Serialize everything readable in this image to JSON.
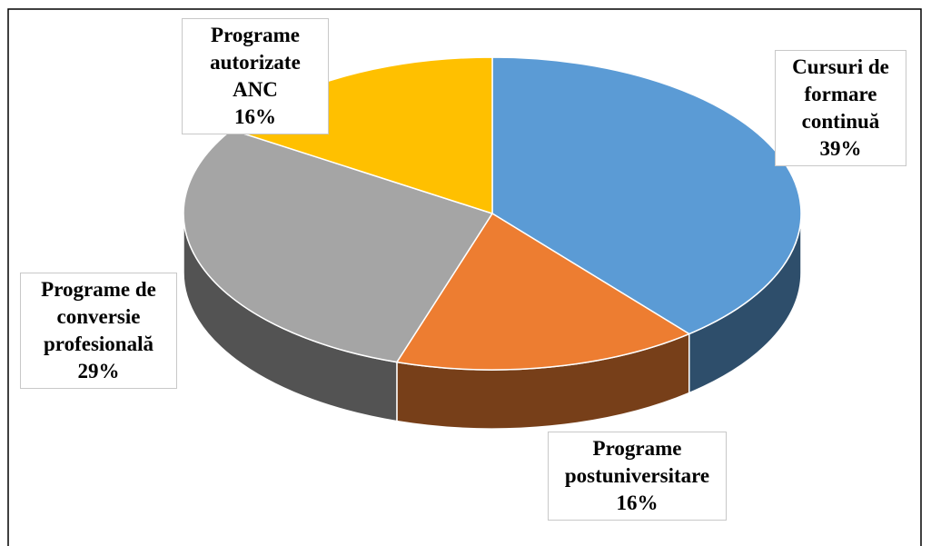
{
  "chart_data": {
    "type": "pie",
    "categories": [
      "Cursuri de formare continuă",
      "Programe postuniversitare",
      "Programe de conversie profesională",
      "Programe autorizate ANC"
    ],
    "values": [
      39,
      16,
      29,
      16
    ],
    "value_labels": [
      "39%",
      "16%",
      "29%",
      "16%"
    ],
    "colors": [
      "#5b9bd5",
      "#ed7d31",
      "#a5a5a5",
      "#ffc000"
    ]
  }
}
